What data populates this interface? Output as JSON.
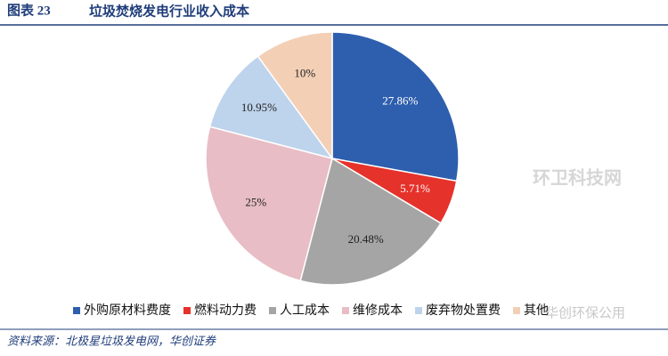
{
  "figure_label": "图表 23",
  "source": "资料来源：北极星垃圾发电网，华创证券",
  "watermarks": [
    "环卫科技网",
    "华创环保公用"
  ],
  "chart_data": {
    "type": "pie",
    "title": "垃圾焚烧发电行业收入成本",
    "categories": [
      "外购原材料费度",
      "燃料动力费",
      "人工成本",
      "维修成本",
      "废弃物处置费",
      "其他"
    ],
    "values": [
      27.86,
      5.71,
      20.48,
      25,
      10.95,
      10
    ],
    "value_labels": [
      "27.86%",
      "5.71%",
      "20.48%",
      "25%",
      "10.95%",
      "10%"
    ],
    "colors": [
      "#2e5fae",
      "#e5322b",
      "#a5a5a5",
      "#e8bdc5",
      "#bed3ec",
      "#f3cfb6"
    ],
    "legend": "bottom"
  }
}
